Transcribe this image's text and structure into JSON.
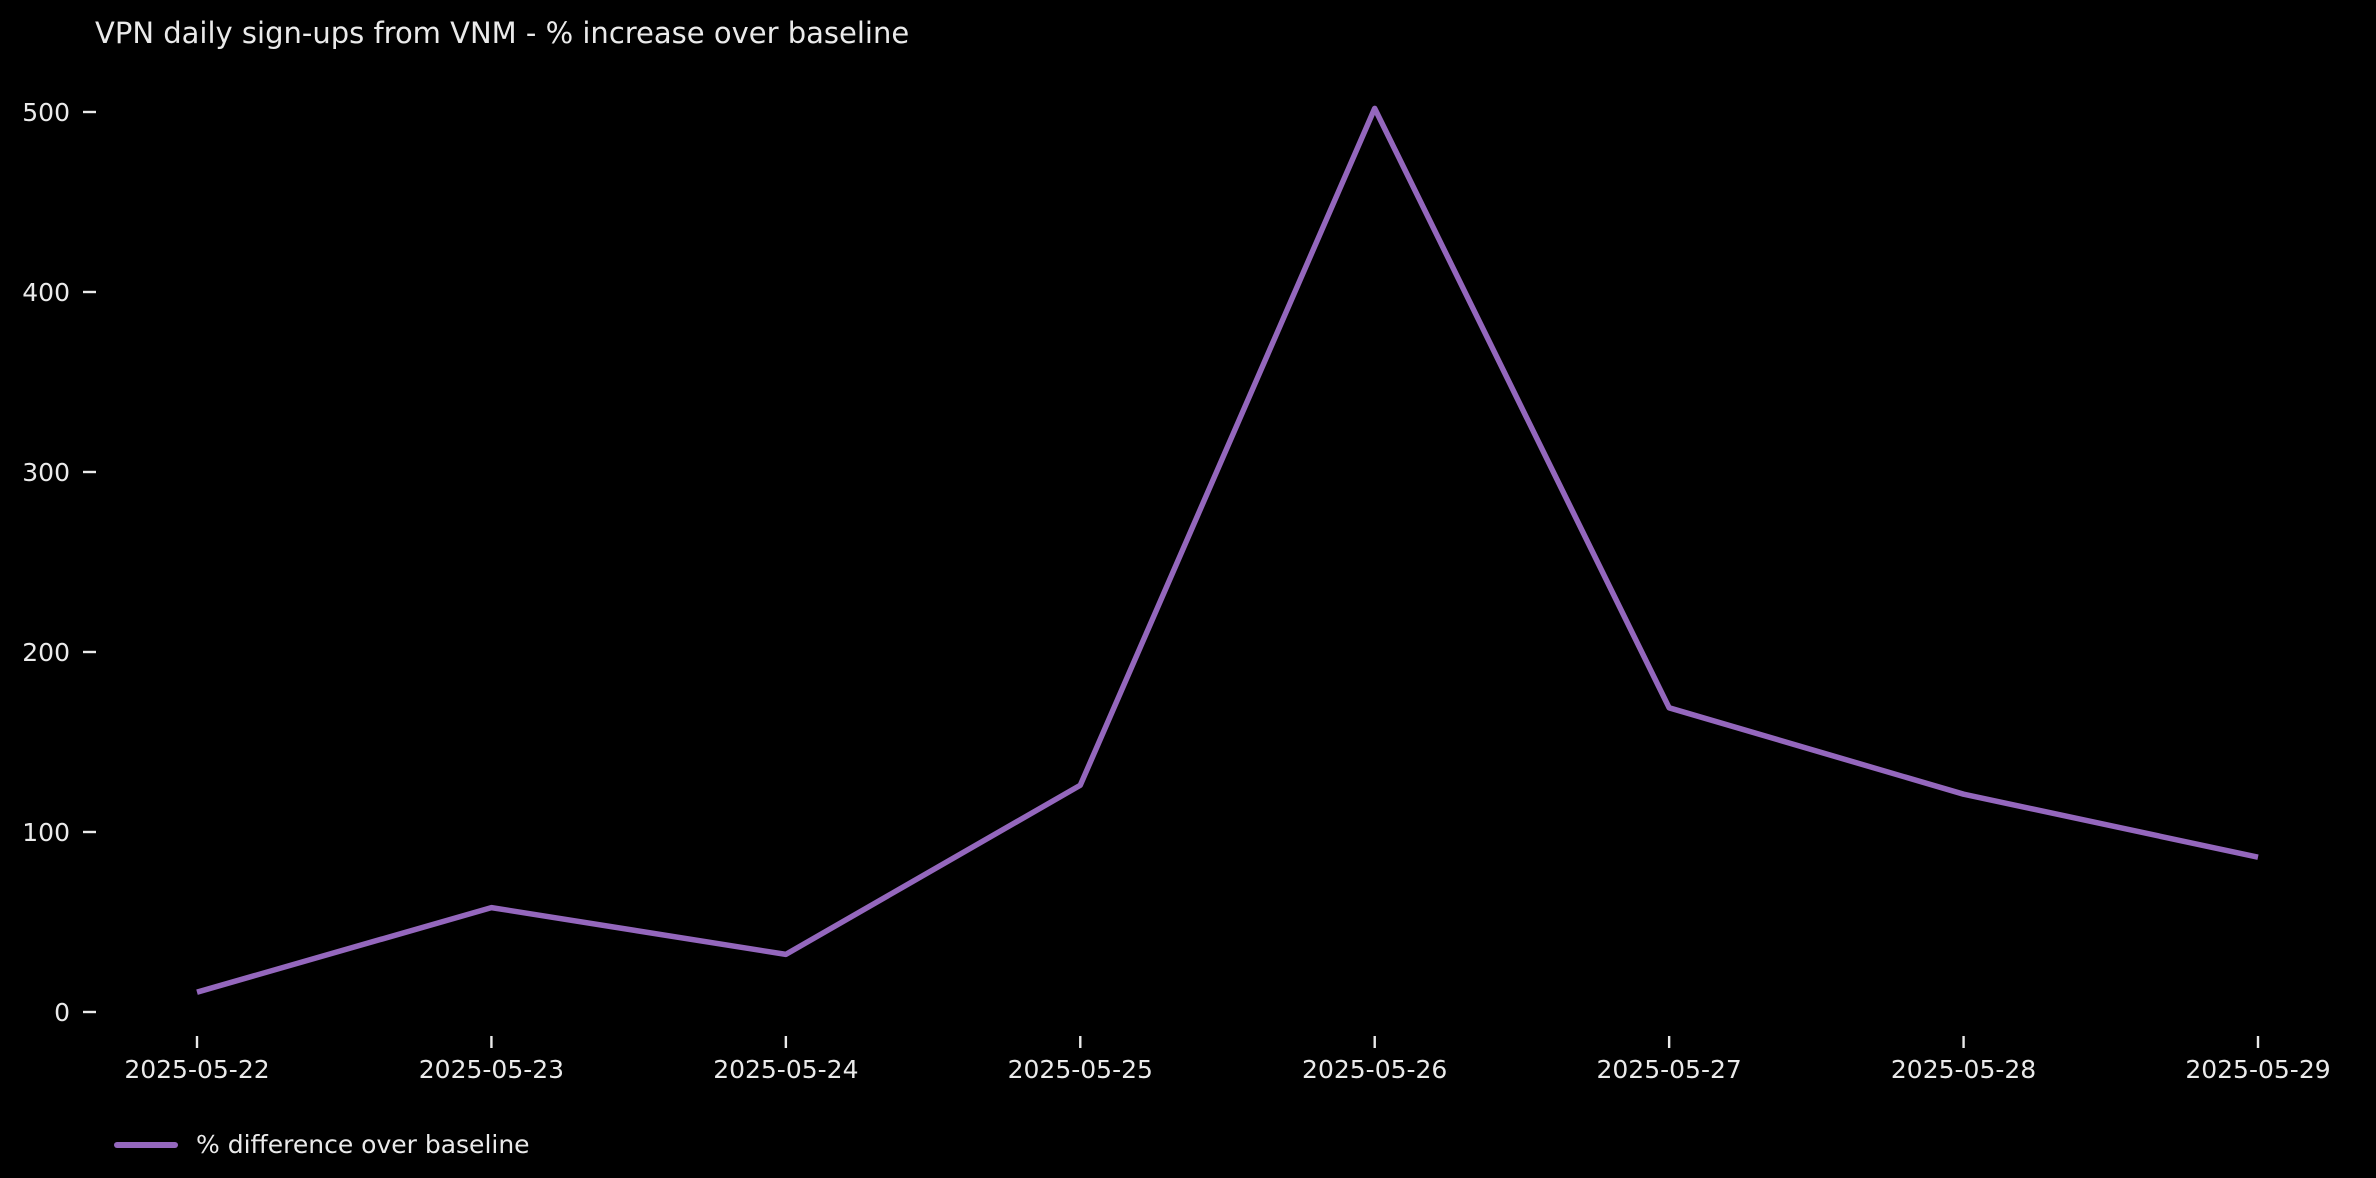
{
  "page": {
    "background": "#000000",
    "text_color": "#eaeaea"
  },
  "chart_data": {
    "type": "line",
    "title": "VPN daily sign-ups from VNM - % increase over baseline",
    "x": [
      "2025-05-22",
      "2025-05-23",
      "2025-05-24",
      "2025-05-25",
      "2025-05-26",
      "2025-05-27",
      "2025-05-28",
      "2025-05-29"
    ],
    "series": [
      {
        "name": "% difference over baseline",
        "color": "#9467bd",
        "values": [
          11,
          58,
          32,
          126,
          502,
          169,
          121,
          86
        ]
      }
    ],
    "xlabel": "",
    "ylabel": "",
    "yticks": [
      0,
      100,
      200,
      300,
      400,
      500
    ],
    "ylim": [
      -14,
      530
    ],
    "grid": false,
    "legend_position": "lower-left",
    "background": "#000000",
    "tick_color": "#eaeaea"
  }
}
